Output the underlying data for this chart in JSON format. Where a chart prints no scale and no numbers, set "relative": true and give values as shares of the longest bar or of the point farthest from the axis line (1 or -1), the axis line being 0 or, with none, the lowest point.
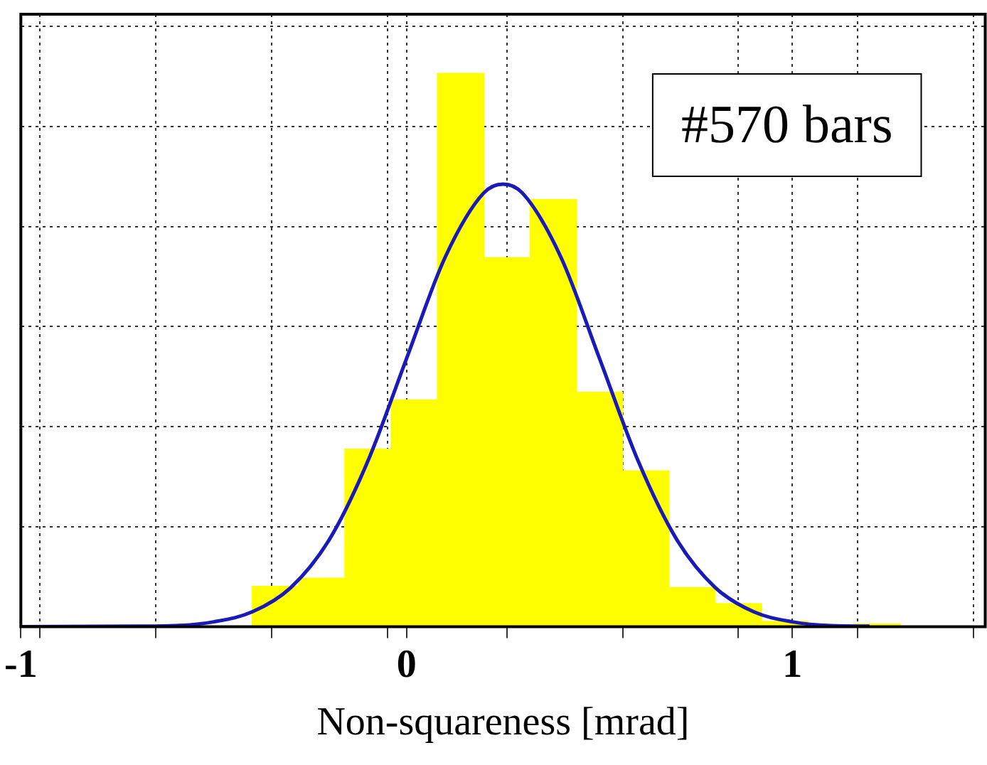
{
  "chart_data": {
    "type": "histogram",
    "relative": true,
    "xlabel": "Non-squareness [mrad]",
    "annotations": [
      "#570 bars"
    ],
    "bins": [
      -0.4,
      -0.28,
      -0.16,
      -0.04,
      0.08,
      0.2,
      0.32,
      0.44,
      0.56,
      0.68,
      0.8,
      0.92,
      1.04,
      1.16,
      1.28
    ],
    "values": [
      0.073,
      0.088,
      0.321,
      0.41,
      1,
      0.667,
      0.772,
      0.424,
      0.282,
      0.071,
      0.042,
      0.01,
      0,
      0.005
    ],
    "color": "#ffff00",
    "series": [
      {
        "type": "line",
        "color": "#1a1ab8",
        "x": [
          -1,
          -0.7,
          -0.6,
          -0.5,
          -0.4,
          -0.3,
          -0.2,
          -0.1,
          0,
          0.1,
          0.2,
          0.25,
          0.3,
          0.4,
          0.5,
          0.6,
          0.7,
          0.8,
          0.9,
          1,
          1.1,
          1.2
        ],
        "values": [
          0,
          0.001,
          0.002,
          0.009,
          0.027,
          0.071,
          0.158,
          0.3,
          0.485,
          0.668,
          0.784,
          0.8,
          0.784,
          0.668,
          0.485,
          0.3,
          0.158,
          0.071,
          0.027,
          0.009,
          0.002,
          0.001
        ]
      }
    ],
    "xlim": [
      -1,
      1.5
    ],
    "xticks": [
      -1,
      {
        "value": -0.95,
        "label": null
      },
      {
        "value": -0.65,
        "label": null
      },
      {
        "value": -0.35,
        "label": null
      },
      {
        "value": -0.05,
        "label": null
      },
      0,
      {
        "value": 0.26,
        "label": null
      },
      {
        "value": 0.56,
        "label": null
      },
      {
        "value": 0.86,
        "label": null
      },
      1,
      {
        "value": 1.17,
        "label": null
      },
      {
        "value": 1.47,
        "label": null
      }
    ],
    "grid": true,
    "legend": false,
    "marker": "none",
    "line_style": "solid"
  }
}
